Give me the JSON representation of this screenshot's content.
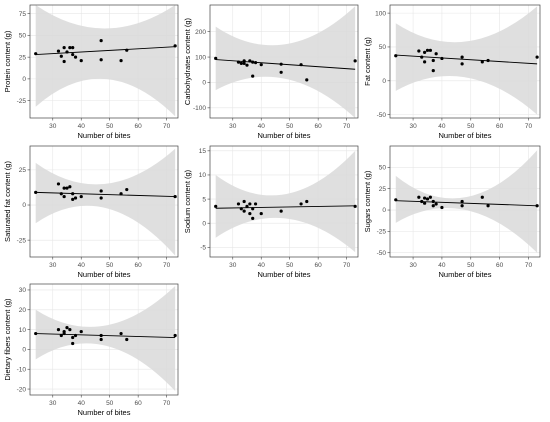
{
  "chart_data": [
    {
      "type": "scatter",
      "ylabel": "Protein content (g)",
      "xlabel": "Number of bites",
      "xlim": [
        22,
        74
      ],
      "ylim": [
        -45,
        85
      ],
      "xticks": [
        30,
        40,
        50,
        60,
        70
      ],
      "yticks": [
        -25,
        0,
        25,
        50,
        75
      ],
      "points": [
        [
          24,
          29
        ],
        [
          32,
          32
        ],
        [
          33,
          26
        ],
        [
          34,
          36
        ],
        [
          34,
          20
        ],
        [
          35,
          31
        ],
        [
          36,
          36
        ],
        [
          37,
          28
        ],
        [
          37,
          36
        ],
        [
          38,
          25
        ],
        [
          40,
          21
        ],
        [
          47,
          22
        ],
        [
          47,
          44
        ],
        [
          54,
          21
        ],
        [
          56,
          33
        ],
        [
          73,
          38
        ]
      ],
      "fit": {
        "x": [
          24,
          73
        ],
        "y": [
          28,
          37
        ]
      },
      "ci": {
        "x": [
          24,
          48,
          73
        ],
        "lower": [
          -32,
          0,
          -43
        ],
        "upper": [
          85,
          58,
          85
        ]
      },
      "grid": true
    },
    {
      "type": "scatter",
      "ylabel": "Carbohydrates content (g)",
      "xlabel": "Number of bites",
      "xlim": [
        22,
        74
      ],
      "ylim": [
        -140,
        305
      ],
      "xticks": [
        30,
        40,
        50,
        60,
        70
      ],
      "yticks": [
        -100,
        0,
        100,
        200
      ],
      "points": [
        [
          24,
          95
        ],
        [
          32,
          80
        ],
        [
          33,
          75
        ],
        [
          34,
          85
        ],
        [
          34,
          75
        ],
        [
          35,
          68
        ],
        [
          36,
          85
        ],
        [
          37,
          80
        ],
        [
          37,
          25
        ],
        [
          38,
          78
        ],
        [
          40,
          70
        ],
        [
          47,
          40
        ],
        [
          47,
          72
        ],
        [
          54,
          70
        ],
        [
          56,
          10
        ],
        [
          73,
          85
        ]
      ],
      "fit": {
        "x": [
          24,
          73
        ],
        "y": [
          90,
          52
        ]
      },
      "ci": {
        "x": [
          24,
          48,
          73
        ],
        "lower": [
          -30,
          15,
          -140
        ],
        "upper": [
          220,
          150,
          300
        ]
      },
      "grid": true
    },
    {
      "type": "scatter",
      "ylabel": "Fat content (g)",
      "xlabel": "Number of bites",
      "xlim": [
        22,
        74
      ],
      "ylim": [
        -55,
        112
      ],
      "xticks": [
        30,
        40,
        50,
        60,
        70
      ],
      "yticks": [
        -50,
        0,
        50,
        100
      ],
      "points": [
        [
          24,
          37
        ],
        [
          32,
          44
        ],
        [
          33,
          35
        ],
        [
          34,
          42
        ],
        [
          34,
          28
        ],
        [
          35,
          45
        ],
        [
          36,
          45
        ],
        [
          37,
          30
        ],
        [
          37,
          15
        ],
        [
          38,
          40
        ],
        [
          40,
          33
        ],
        [
          47,
          25
        ],
        [
          47,
          35
        ],
        [
          54,
          28
        ],
        [
          56,
          30
        ],
        [
          73,
          35
        ]
      ],
      "fit": {
        "x": [
          24,
          73
        ],
        "y": [
          38,
          25
        ]
      },
      "ci": {
        "x": [
          24,
          48,
          73
        ],
        "lower": [
          -15,
          5,
          -50
        ],
        "upper": [
          85,
          58,
          110
        ]
      },
      "grid": true
    },
    {
      "type": "scatter",
      "ylabel": "Saturated fat content (g)",
      "xlabel": "Number of bites",
      "xlim": [
        22,
        74
      ],
      "ylim": [
        -37,
        42
      ],
      "xticks": [
        30,
        40,
        50,
        60,
        70
      ],
      "yticks": [
        -25,
        0,
        25
      ],
      "points": [
        [
          24,
          9
        ],
        [
          32,
          15
        ],
        [
          33,
          8
        ],
        [
          34,
          12
        ],
        [
          34,
          6
        ],
        [
          35,
          12
        ],
        [
          36,
          13
        ],
        [
          37,
          4
        ],
        [
          37,
          8
        ],
        [
          38,
          5
        ],
        [
          40,
          6
        ],
        [
          47,
          10
        ],
        [
          47,
          5
        ],
        [
          54,
          8
        ],
        [
          56,
          11
        ],
        [
          73,
          6
        ]
      ],
      "fit": {
        "x": [
          24,
          73
        ],
        "y": [
          9,
          6
        ]
      },
      "ci": {
        "x": [
          24,
          48,
          73
        ],
        "lower": [
          -13,
          -2,
          -36
        ],
        "upper": [
          30,
          15,
          40
        ]
      },
      "grid": true
    },
    {
      "type": "scatter",
      "ylabel": "Sodium content (g)",
      "xlabel": "Number of bites",
      "xlim": [
        22,
        74
      ],
      "ylim": [
        -7,
        16
      ],
      "xticks": [
        30,
        40,
        50,
        60,
        70
      ],
      "yticks": [
        -5,
        0,
        5,
        10,
        15
      ],
      "points": [
        [
          24,
          3.5
        ],
        [
          32,
          4
        ],
        [
          33,
          3
        ],
        [
          34,
          2.5
        ],
        [
          34,
          4.5
        ],
        [
          35,
          3.5
        ],
        [
          36,
          2
        ],
        [
          36,
          4
        ],
        [
          37,
          3
        ],
        [
          37,
          1
        ],
        [
          38,
          4
        ],
        [
          40,
          2
        ],
        [
          47,
          2.5
        ],
        [
          54,
          4
        ],
        [
          56,
          4.5
        ],
        [
          73,
          3.5
        ]
      ],
      "fit": {
        "x": [
          24,
          73
        ],
        "y": [
          3.1,
          3.6
        ]
      },
      "ci": {
        "x": [
          24,
          48,
          73
        ],
        "lower": [
          -3,
          1,
          -6
        ],
        "upper": [
          10,
          6,
          15
        ]
      },
      "grid": true
    },
    {
      "type": "scatter",
      "ylabel": "Sugars content (g)",
      "xlabel": "Number of bites",
      "xlim": [
        22,
        74
      ],
      "ylim": [
        -55,
        75
      ],
      "xticks": [
        30,
        40,
        50,
        60,
        70
      ],
      "yticks": [
        -50,
        -25,
        0,
        25,
        50
      ],
      "points": [
        [
          24,
          12
        ],
        [
          32,
          15
        ],
        [
          33,
          10
        ],
        [
          34,
          14
        ],
        [
          34,
          8
        ],
        [
          35,
          13
        ],
        [
          36,
          15
        ],
        [
          37,
          5
        ],
        [
          37,
          10
        ],
        [
          38,
          7
        ],
        [
          40,
          3
        ],
        [
          47,
          10
        ],
        [
          47,
          5
        ],
        [
          54,
          15
        ],
        [
          56,
          5
        ],
        [
          73,
          5
        ]
      ],
      "fit": {
        "x": [
          24,
          73
        ],
        "y": [
          11,
          5
        ]
      },
      "ci": {
        "x": [
          24,
          48,
          73
        ],
        "lower": [
          -15,
          0,
          -50
        ],
        "upper": [
          40,
          15,
          70
        ]
      },
      "grid": true
    },
    {
      "type": "scatter",
      "ylabel": "Dietary fibers content (g)",
      "xlabel": "Number of bites",
      "xlim": [
        22,
        74
      ],
      "ylim": [
        -23,
        33
      ],
      "xticks": [
        30,
        40,
        50,
        60,
        70
      ],
      "yticks": [
        -20,
        -10,
        0,
        10,
        20,
        30
      ],
      "points": [
        [
          24,
          8
        ],
        [
          32,
          10
        ],
        [
          33,
          7
        ],
        [
          34,
          9
        ],
        [
          34,
          8
        ],
        [
          35,
          11
        ],
        [
          36,
          10
        ],
        [
          37,
          6
        ],
        [
          37,
          3
        ],
        [
          38,
          7
        ],
        [
          40,
          9
        ],
        [
          47,
          7
        ],
        [
          47,
          5
        ],
        [
          54,
          8
        ],
        [
          56,
          5
        ],
        [
          73,
          7
        ]
      ],
      "fit": {
        "x": [
          24,
          73
        ],
        "y": [
          8,
          6
        ]
      },
      "ci": {
        "x": [
          24,
          48,
          73
        ],
        "lower": [
          -5,
          2,
          -21
        ],
        "upper": [
          20,
          12,
          32
        ]
      },
      "grid": true
    }
  ],
  "colors": {
    "panel_bg": "#ffffff",
    "border": "#444444",
    "grid": "#e6e6e6",
    "ci_fill": "#d9d9d9",
    "points": "#000000",
    "fit_line": "#000000",
    "tick_text": "#4d4d4d",
    "label_text": "#000000"
  }
}
